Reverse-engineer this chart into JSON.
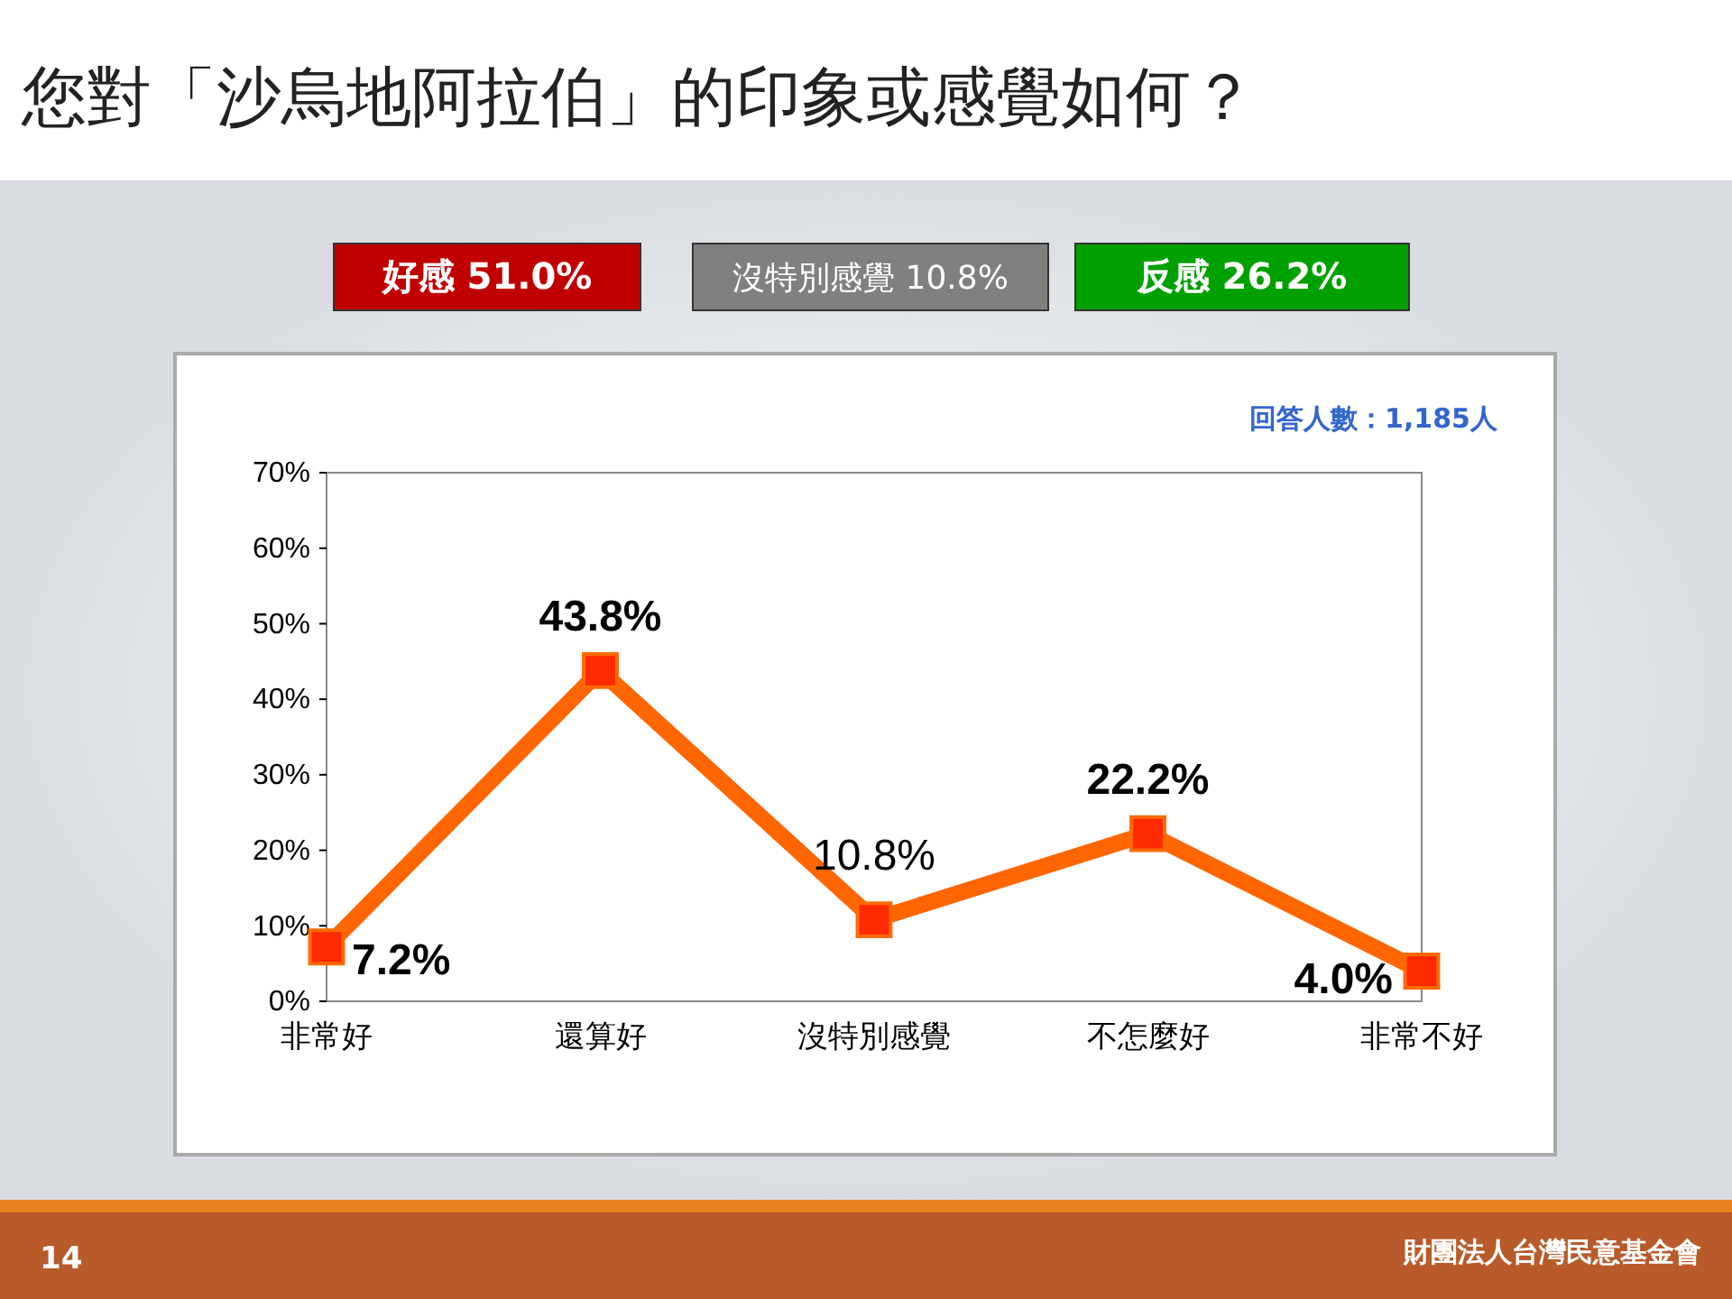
{
  "chart_data": {
    "type": "line",
    "title": "您對「沙烏地阿拉伯」的印象或感覺如何？",
    "categories": [
      "非常好",
      "還算好",
      "沒特別感覺",
      "不怎麼好",
      "非常不好"
    ],
    "series": [
      {
        "color": "#ff6600",
        "values": [
          7.2,
          43.8,
          10.8,
          22.2,
          4.0
        ],
        "value_labels": [
          "7.2%",
          "43.8%",
          "10.8%",
          "22.2%",
          "4.0%"
        ]
      }
    ],
    "ylim": [
      0,
      70
    ],
    "yticks": [
      {
        "value": 0,
        "label": "0%"
      },
      {
        "value": 10,
        "label": "10%"
      },
      {
        "value": 20,
        "label": "20%"
      },
      {
        "value": 30,
        "label": "30%"
      },
      {
        "value": 40,
        "label": "40%"
      },
      {
        "value": 50,
        "label": "50%"
      },
      {
        "value": 60,
        "label": "60%"
      },
      {
        "value": 70,
        "label": "70%"
      }
    ],
    "marker": "square",
    "grid": false,
    "annotations": [
      "好感 51.0%",
      "沒特別感覺 10.8%",
      "反感 26.2%",
      "回答人數：1,185人",
      "14",
      "財團法人台灣民意基金會"
    ]
  }
}
